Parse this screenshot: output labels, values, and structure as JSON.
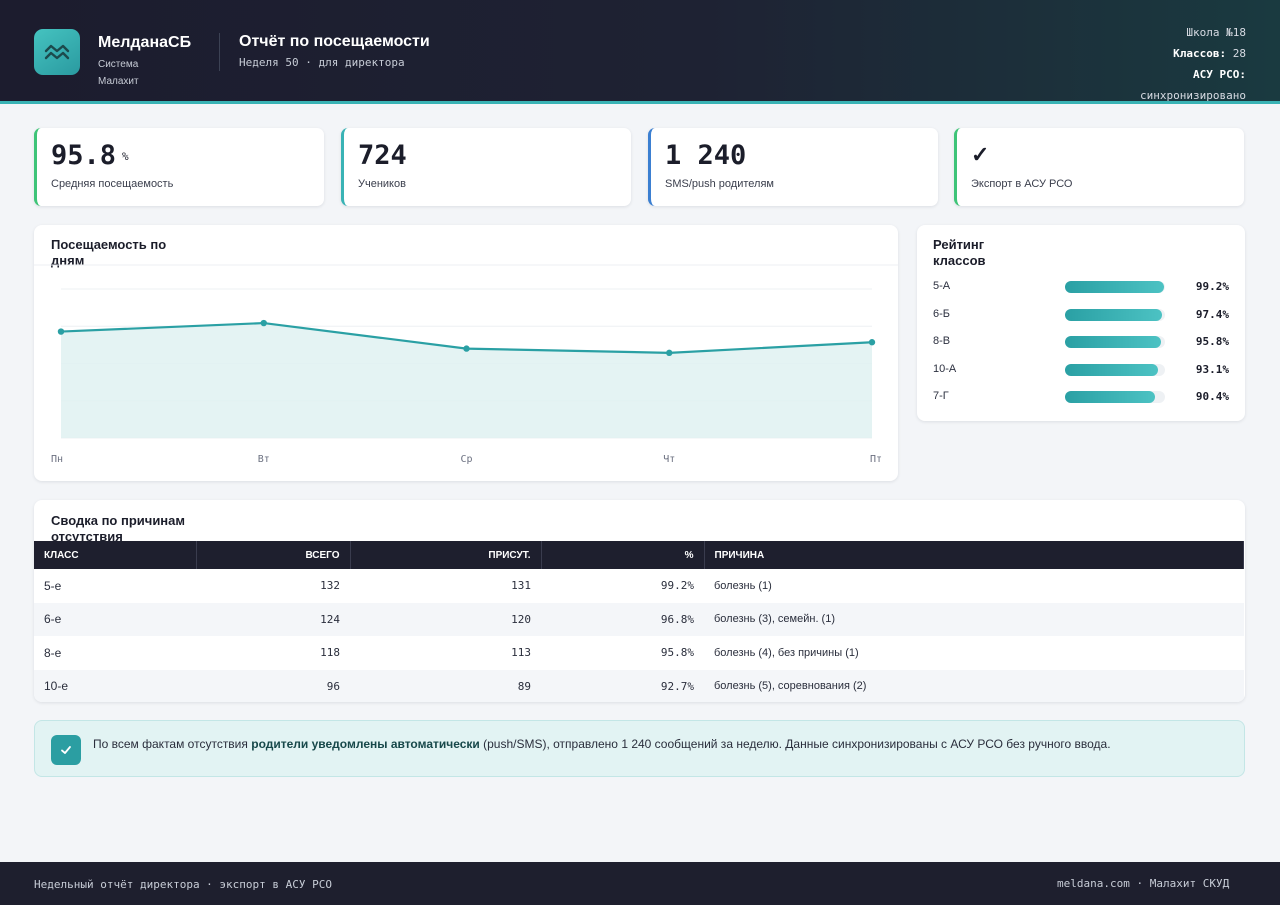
{
  "header": {
    "brand_name": "МелданаСБ",
    "brand_sub": "Система Малахит",
    "report_title": "Отчёт по посещаемости",
    "report_sub": "Неделя 50 · для директора",
    "school": "Школа №18",
    "classes_label": "Классов:",
    "classes_value": "28",
    "asu_label": "АСУ РСО:",
    "asu_value": "синхронизировано"
  },
  "kpis": [
    {
      "value": "95.8",
      "unit": "%",
      "label": "Средняя посещаемость",
      "accent": "#3ec478"
    },
    {
      "value": "724",
      "unit": "",
      "label": "Учеников",
      "accent": "#39b3b5"
    },
    {
      "value": "1 240",
      "unit": "",
      "label": "SMS/push родителям",
      "accent": "#3b7fd1"
    },
    {
      "value": "✓",
      "unit": "",
      "label": "Экспорт в АСУ РСО",
      "accent": "#3ec478"
    }
  ],
  "daily": {
    "title": "Посещаемость по дням",
    "chart_data": {
      "type": "area",
      "categories": [
        "Пн",
        "Вт",
        "Ср",
        "Чт",
        "Пт"
      ],
      "values": [
        96.0,
        96.4,
        95.2,
        95.0,
        95.5
      ],
      "ylim": [
        91,
        98
      ],
      "grid": true,
      "color": "#2aa0a4"
    }
  },
  "ranking": {
    "title": "Рейтинг классов",
    "items": [
      {
        "name": "5-А",
        "pct": "99.2%",
        "value": 99.2
      },
      {
        "name": "6-Б",
        "pct": "97.4%",
        "value": 97.4
      },
      {
        "name": "8-В",
        "pct": "95.8%",
        "value": 95.8
      },
      {
        "name": "10-А",
        "pct": "93.1%",
        "value": 93.1
      },
      {
        "name": "7-Г",
        "pct": "90.4%",
        "value": 90.4
      }
    ]
  },
  "summary": {
    "title": "Сводка по причинам отсутствия",
    "columns": [
      "КЛАСС",
      "ВСЕГО",
      "ПРИСУТ.",
      "%",
      "ПРИЧИНА"
    ],
    "rows": [
      [
        "5-е",
        "132",
        "131",
        "99.2%",
        "болезнь (1)"
      ],
      [
        "6-е",
        "124",
        "120",
        "96.8%",
        "болезнь (3), семейн. (1)"
      ],
      [
        "8-е",
        "118",
        "113",
        "95.8%",
        "болезнь (4), без причины (1)"
      ],
      [
        "10-е",
        "96",
        "89",
        "92.7%",
        "болезнь (5), соревнования (2)"
      ]
    ]
  },
  "notice": {
    "before": "По всем фактам отсутствия ",
    "bold": "родители уведомлены автоматически",
    "after": " (push/SMS), отправлено 1 240 сообщений за неделю. Данные синхронизированы с АСУ РСО без ручного ввода."
  },
  "footer": {
    "left": "Недельный отчёт директора · экспорт в АСУ РСО",
    "right": "meldana.com · Малахит СКУД"
  }
}
